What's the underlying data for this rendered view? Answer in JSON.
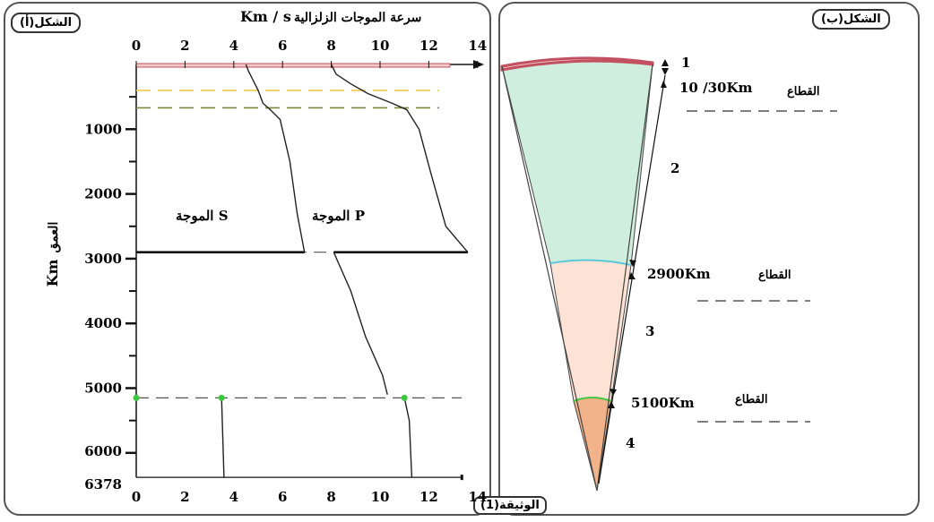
{
  "document_label": "الوثيقة(1)",
  "figure_a": {
    "tag": "الشكل(أ)",
    "title_ar": "سرعة الموجات الزلزالية",
    "title_unit": "Km / s",
    "ylabel_ar": "العمق",
    "ylabel_unit": "Km",
    "top_ticks": [
      "0",
      "2",
      "4",
      "6",
      "8",
      "10",
      "12",
      "14"
    ],
    "bottom_ticks": [
      "0",
      "2",
      "4",
      "6",
      "8",
      "10",
      "12",
      "14"
    ],
    "depth_ticks": [
      "1000",
      "2000",
      "3000",
      "4000",
      "5000",
      "6000",
      "6378"
    ],
    "s_wave_label": "الموجة S",
    "p_wave_label": "الموجة P"
  },
  "figure_b": {
    "tag": "الشكل(ب)",
    "zones": [
      "1",
      "2",
      "3",
      "4"
    ],
    "boundaries": [
      {
        "word": "القطاع",
        "depth": "10 /30Km"
      },
      {
        "word": "القطاع",
        "depth": "2900Km"
      },
      {
        "word": "القطاع",
        "depth": "5100Km"
      }
    ],
    "colors": {
      "crust": "#f3c9c9",
      "mantle": "#cfeede",
      "outer_core": "#fde3d6",
      "inner_core": "#f2b38a",
      "moho": "#d4606a",
      "cmb": "#5ac8d8",
      "icb": "#44c844"
    }
  },
  "chart_data": {
    "type": "line",
    "xlabel": "سرعة الموجات الزلزالية Km / s",
    "ylabel": "العمق Km",
    "xlim": [
      0,
      14
    ],
    "ylim": [
      0,
      6378
    ],
    "y_inverted": true,
    "series": [
      {
        "name": "الموجة S",
        "points": [
          [
            4.5,
            0
          ],
          [
            4.6,
            100
          ],
          [
            4.8,
            250
          ],
          [
            5.0,
            400
          ],
          [
            5.2,
            600
          ],
          [
            5.5,
            700
          ],
          [
            5.9,
            850
          ],
          [
            6.3,
            1500
          ],
          [
            6.6,
            2300
          ],
          [
            6.9,
            2900
          ]
        ],
        "inner_core": [
          [
            3.5,
            5150
          ],
          [
            3.6,
            6378
          ]
        ]
      },
      {
        "name": "الموجة P",
        "points": [
          [
            8.0,
            0
          ],
          [
            8.2,
            150
          ],
          [
            8.8,
            300
          ],
          [
            9.5,
            450
          ],
          [
            10.5,
            600
          ],
          [
            11.1,
            700
          ],
          [
            11.6,
            1000
          ],
          [
            12.1,
            1700
          ],
          [
            12.7,
            2500
          ],
          [
            13.6,
            2900
          ]
        ],
        "outer_core": [
          [
            8.1,
            2900
          ],
          [
            8.8,
            3500
          ],
          [
            9.4,
            4200
          ],
          [
            10.1,
            4800
          ],
          [
            10.3,
            5100
          ]
        ],
        "inner_core": [
          [
            11.0,
            5150
          ],
          [
            11.2,
            5500
          ],
          [
            11.3,
            6378
          ]
        ]
      }
    ],
    "discontinuities_km": [
      10,
      400,
      670,
      2900,
      5150
    ]
  }
}
